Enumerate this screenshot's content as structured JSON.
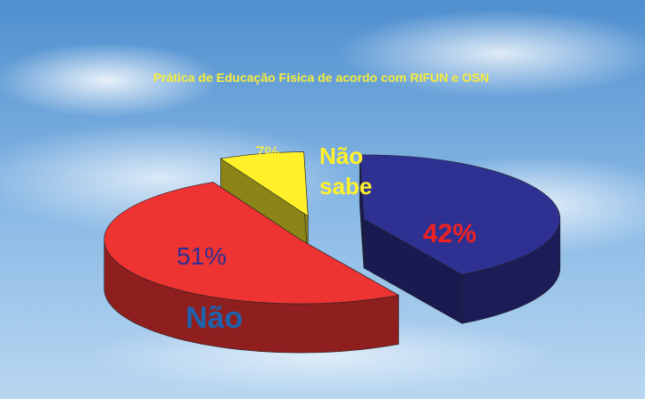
{
  "chart_data": {
    "type": "pie3d",
    "title": "Prática de Educação Física de acordo  com RIFUN e OSN",
    "categories": [
      "Não",
      "Não sabe",
      null
    ],
    "values": [
      51,
      7,
      42
    ],
    "value_labels": [
      "51%",
      "7%",
      "42%"
    ],
    "colors": [
      "#ee3333",
      "#fff02a",
      "#2e3192"
    ]
  }
}
